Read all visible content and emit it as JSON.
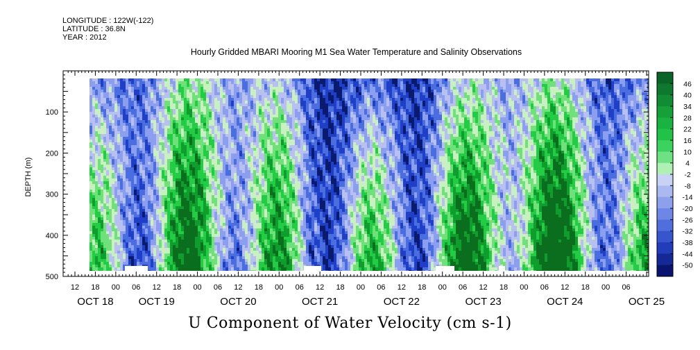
{
  "header": {
    "longitude": "LONGITUDE : 122W(-122)",
    "latitude": "LATITUDE : 36.8N",
    "year": "YEAR : 2012"
  },
  "chart_data": {
    "type": "heatmap",
    "title": "Hourly Gridded MBARI Mooring M1 Sea Water Temperature and Salinity Observations",
    "variable_title": "U Component of Water Velocity (cm s-1)",
    "ylabel": "DEPTH (m)",
    "ylim": [
      500,
      0
    ],
    "y_ticks": [
      100,
      200,
      300,
      400,
      500
    ],
    "x_tick_labels": [
      "12",
      "18",
      "00",
      "06",
      "12",
      "18",
      "00",
      "06",
      "12",
      "18",
      "00",
      "06",
      "12",
      "18",
      "00",
      "06",
      "12",
      "18",
      "00",
      "06",
      "12",
      "18",
      "00",
      "06",
      "12",
      "18",
      "00",
      "06"
    ],
    "date_labels": [
      "OCT 18",
      "OCT 19",
      "OCT 20",
      "OCT 21",
      "OCT 22",
      "OCT 23",
      "OCT 24",
      "OCT 25"
    ],
    "colorbar_ticks": [
      "46",
      "40",
      "34",
      "28",
      "22",
      "16",
      "10",
      "4",
      "-2",
      "-8",
      "-14",
      "-20",
      "-26",
      "-32",
      "-38",
      "-44",
      "-50"
    ],
    "colorbar_range": [
      -50,
      52
    ],
    "colormap": [
      "#0a1a6e",
      "#1f3fc8",
      "#4a6ee0",
      "#8c9ef0",
      "#b8c0f2",
      "#c9f0c0",
      "#6fe07a",
      "#22cc44",
      "#0f9e2e",
      "#0a6e1e"
    ]
  }
}
